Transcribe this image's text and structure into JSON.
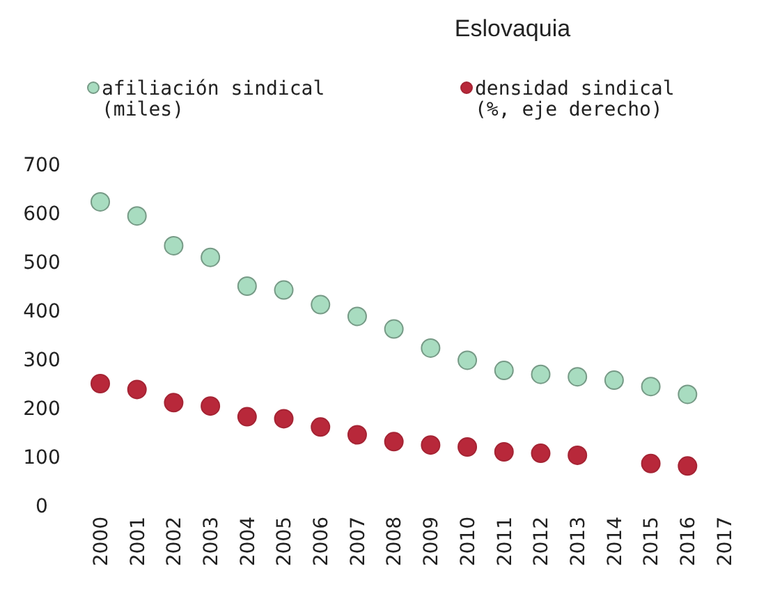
{
  "chart_data": {
    "type": "scatter",
    "title": "Eslovaquia",
    "categories": [
      "2000",
      "2001",
      "2002",
      "2003",
      "2004",
      "2005",
      "2006",
      "2007",
      "2008",
      "2009",
      "2010",
      "2011",
      "2012",
      "2013",
      "2014",
      "2015",
      "2016",
      "2017"
    ],
    "series": [
      {
        "name": "afiliación sindical\n(miles)",
        "color": "#a8dcc0",
        "values": [
          623,
          594,
          533,
          509,
          450,
          442,
          412,
          388,
          362,
          323,
          298,
          277,
          269,
          264,
          257,
          244,
          228,
          null
        ]
      },
      {
        "name": "densidad sindical\n(%, eje derecho)",
        "color": "#b8283a",
        "values": [
          250,
          238,
          211,
          204,
          182,
          178,
          161,
          145,
          131,
          124,
          120,
          110,
          107,
          103,
          null,
          86,
          81,
          null
        ]
      }
    ],
    "ylim": [
      0,
      700
    ],
    "yticks": [
      0,
      100,
      200,
      300,
      400,
      500,
      600,
      700
    ],
    "grid": false,
    "legend": "top",
    "marker": "circle"
  }
}
